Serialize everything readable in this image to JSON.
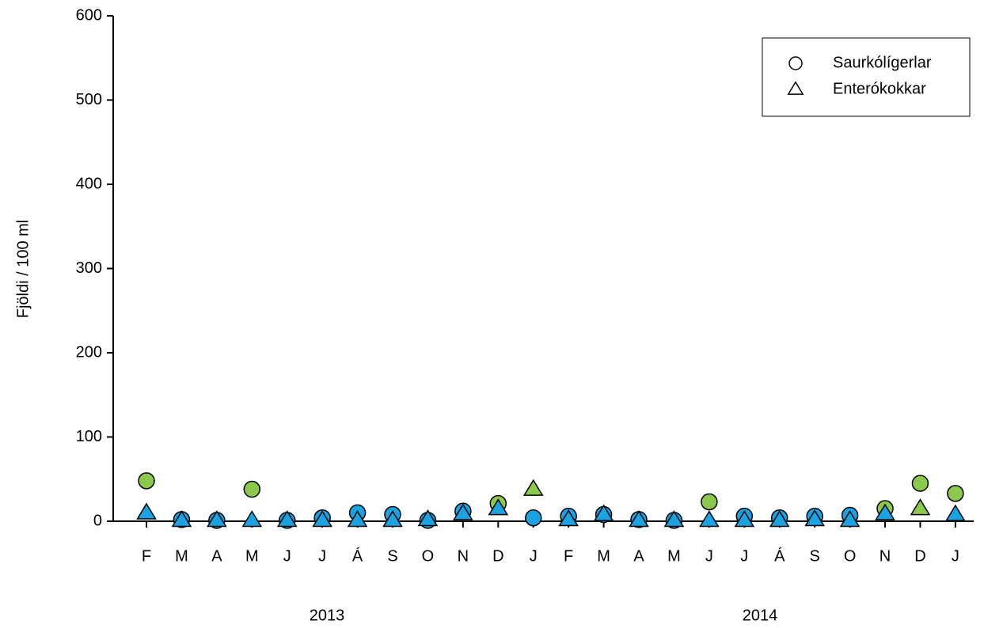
{
  "chart_data": {
    "type": "scatter",
    "y_label": "Fjöldi / 100 ml",
    "categories": [
      "F",
      "M",
      "A",
      "M",
      "J",
      "J",
      "Á",
      "S",
      "O",
      "N",
      "D",
      "J",
      "F",
      "M",
      "A",
      "M",
      "J",
      "J",
      "Á",
      "S",
      "O",
      "N",
      "D",
      "J"
    ],
    "year_labels": [
      "2013",
      "2014"
    ],
    "ylim": [
      0,
      600
    ],
    "yticks": [
      0,
      100,
      200,
      300,
      400,
      500,
      600
    ],
    "legend": "top-right",
    "series": [
      {
        "name": "Saurkólígerlar",
        "marker": "circle",
        "values": [
          48,
          2,
          1,
          38,
          1,
          4,
          10,
          8,
          1,
          12,
          21,
          4,
          6,
          8,
          2,
          1,
          23,
          6,
          4,
          6,
          7,
          15,
          45,
          33
        ],
        "colors": [
          "#8cc84b",
          "#1aa3e0",
          "#1aa3e0",
          "#8cc84b",
          "#1aa3e0",
          "#1aa3e0",
          "#1aa3e0",
          "#1aa3e0",
          "#1aa3e0",
          "#1aa3e0",
          "#8cc84b",
          "#1aa3e0",
          "#1aa3e0",
          "#1aa3e0",
          "#1aa3e0",
          "#1aa3e0",
          "#8cc84b",
          "#1aa3e0",
          "#1aa3e0",
          "#1aa3e0",
          "#1aa3e0",
          "#8cc84b",
          "#8cc84b",
          "#8cc84b"
        ]
      },
      {
        "name": "Enterókokkar",
        "marker": "triangle",
        "values": [
          10,
          1,
          1,
          1,
          1,
          1,
          1,
          1,
          2,
          9,
          15,
          38,
          2,
          8,
          1,
          1,
          1,
          1,
          1,
          2,
          1,
          9,
          15,
          8
        ],
        "colors": [
          "#1aa3e0",
          "#1aa3e0",
          "#1aa3e0",
          "#1aa3e0",
          "#1aa3e0",
          "#1aa3e0",
          "#1aa3e0",
          "#1aa3e0",
          "#1aa3e0",
          "#1aa3e0",
          "#1aa3e0",
          "#8cc84b",
          "#1aa3e0",
          "#1aa3e0",
          "#1aa3e0",
          "#1aa3e0",
          "#1aa3e0",
          "#1aa3e0",
          "#1aa3e0",
          "#1aa3e0",
          "#1aa3e0",
          "#1aa3e0",
          "#8cc84b",
          "#1aa3e0"
        ]
      }
    ]
  }
}
